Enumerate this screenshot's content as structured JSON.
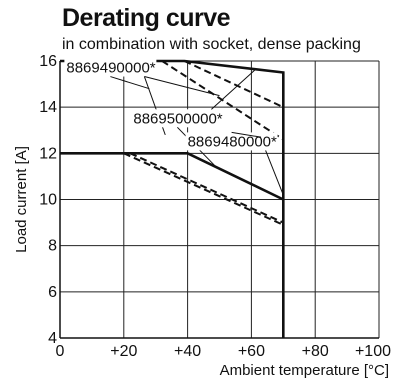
{
  "chart_data": {
    "type": "line",
    "title": "Derating curve",
    "subtitle": "in combination with socket, dense packing",
    "xlabel": "Ambient temperature [°C]",
    "ylabel": "Load current [A]",
    "xlim": [
      0,
      100
    ],
    "ylim": [
      4,
      16
    ],
    "xticks": [
      0,
      20,
      40,
      60,
      80,
      100
    ],
    "xtick_labels": [
      "0",
      "+20",
      "+40",
      "+60",
      "+80",
      "+100"
    ],
    "yticks": [
      4,
      6,
      8,
      10,
      12,
      14,
      16
    ],
    "ytick_labels": [
      "4",
      "6",
      "8",
      "10",
      "12",
      "14",
      "16"
    ],
    "grid": true,
    "series": [
      {
        "name": "",
        "style": "solid",
        "x": [
          0,
          39,
          70,
          70,
          70
        ],
        "y": [
          16,
          16,
          15.5,
          10,
          4
        ]
      },
      {
        "name": "",
        "style": "solid",
        "x": [
          0,
          40,
          70
        ],
        "y": [
          12,
          12,
          10
        ]
      },
      {
        "name": "",
        "style": "dashed",
        "x": [
          39,
          70
        ],
        "y": [
          16,
          14
        ]
      },
      {
        "name": "",
        "style": "dashed",
        "x": [
          32,
          70
        ],
        "y": [
          16,
          12.6
        ]
      },
      {
        "name": "",
        "style": "dashed",
        "x": [
          22,
          70
        ],
        "y": [
          12,
          9
        ]
      },
      {
        "name": "",
        "style": "dashed",
        "x": [
          20,
          70
        ],
        "y": [
          12,
          8.9
        ]
      }
    ],
    "annotations": [
      {
        "text": "8869490000*",
        "x": 2,
        "y": 15.5,
        "leaders": [
          [
            28,
            14.8
          ],
          [
            33,
            12.8
          ],
          [
            50,
            14.5
          ]
        ]
      },
      {
        "text": "8869500000*",
        "x": 23,
        "y": 13.3,
        "leaders": [
          [
            49,
            11.4
          ],
          [
            61,
            15.6
          ]
        ]
      },
      {
        "text": "8869480000*",
        "x": 40,
        "y": 12.3,
        "leaders": [
          [
            70,
            10.2
          ],
          [
            63,
            12.7
          ]
        ]
      }
    ]
  }
}
